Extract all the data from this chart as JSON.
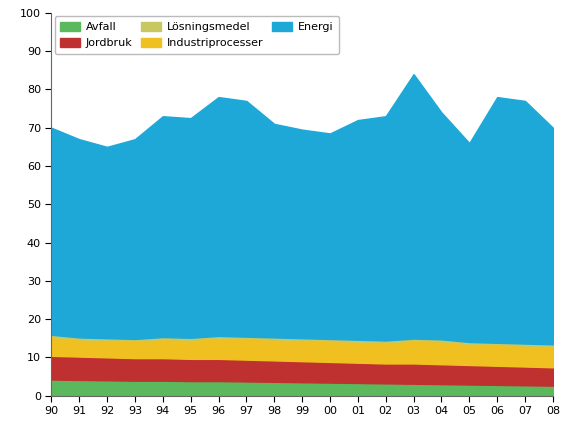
{
  "years": [
    1990,
    1991,
    1992,
    1993,
    1994,
    1995,
    1996,
    1997,
    1998,
    1999,
    2000,
    2001,
    2002,
    2003,
    2004,
    2005,
    2006,
    2007,
    2008
  ],
  "avfall": [
    4.2,
    4.1,
    4.0,
    3.9,
    3.9,
    3.8,
    3.8,
    3.7,
    3.6,
    3.5,
    3.4,
    3.3,
    3.2,
    3.1,
    3.0,
    2.9,
    2.8,
    2.7,
    2.6
  ],
  "jordbruk": [
    6.2,
    6.1,
    6.0,
    5.9,
    5.9,
    5.8,
    5.8,
    5.7,
    5.6,
    5.5,
    5.4,
    5.3,
    5.2,
    5.3,
    5.2,
    5.1,
    5.0,
    4.9,
    4.8
  ],
  "industriprocesser": [
    5.0,
    4.5,
    4.5,
    4.5,
    5.0,
    5.0,
    5.5,
    5.5,
    5.5,
    5.5,
    5.5,
    5.5,
    5.5,
    6.0,
    6.0,
    5.5,
    5.5,
    5.5,
    5.5
  ],
  "losningsmedel": [
    0.5,
    0.5,
    0.5,
    0.5,
    0.5,
    0.5,
    0.5,
    0.5,
    0.5,
    0.5,
    0.5,
    0.5,
    0.5,
    0.5,
    0.5,
    0.5,
    0.5,
    0.5,
    0.5
  ],
  "energi": [
    54.1,
    51.8,
    50.0,
    52.2,
    57.7,
    57.4,
    62.4,
    61.6,
    55.8,
    54.5,
    53.7,
    57.4,
    58.6,
    69.1,
    59.3,
    52.0,
    64.2,
    63.4,
    56.6
  ],
  "colors": {
    "avfall": "#5cb85c",
    "jordbruk": "#bf3030",
    "industriprocesser": "#f0c020",
    "losningsmedel": "#c8c860",
    "energi": "#1ea8d8"
  },
  "labels": {
    "avfall": "Avfall",
    "jordbruk": "Jordbruk",
    "industriprocesser": "Industriprocesser",
    "losningsmedel": "Lösningsmedel",
    "energi": "Energi"
  },
  "ylim": [
    0,
    100
  ],
  "yticks": [
    0,
    10,
    20,
    30,
    40,
    50,
    60,
    70,
    80,
    90,
    100
  ],
  "background_color": "#ffffff"
}
